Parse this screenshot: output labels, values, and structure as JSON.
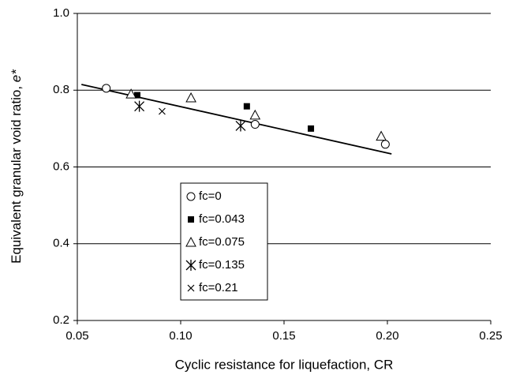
{
  "chart_data": {
    "type": "scatter",
    "xlabel": "Cyclic resistance for liquefaction, CR",
    "ylabel": "Equivalent granular void ratio,  ",
    "ylabel_symbol": "e*",
    "xlim": [
      0.05,
      0.25
    ],
    "xticks": [
      {
        "value": 0.05,
        "label": "0.05"
      },
      {
        "value": 0.1,
        "label": "0.10"
      },
      {
        "value": 0.15,
        "label": "0.15"
      },
      {
        "value": 0.2,
        "label": "0.20"
      },
      {
        "value": 0.25,
        "label": "0.25"
      }
    ],
    "ylim": [
      0.2,
      1.0
    ],
    "yticks": [
      0.2,
      0.4,
      0.6,
      0.8,
      {
        "value": 1.0,
        "label": "1.0"
      }
    ],
    "grid": true,
    "legend": "center",
    "series": [
      {
        "name": "fc=0",
        "marker": "circle",
        "color": "#000000",
        "x": [
          0.064,
          0.136,
          0.199
        ],
        "values": [
          0.805,
          0.711,
          0.659
        ]
      },
      {
        "name": "fc=0.043",
        "marker": "square",
        "color": "#000000",
        "x": [
          0.079,
          0.132,
          0.163
        ],
        "values": [
          0.787,
          0.758,
          0.7
        ]
      },
      {
        "name": "fc=0.075",
        "marker": "triangle",
        "color": "#000000",
        "x": [
          0.076,
          0.105,
          0.136,
          0.197
        ],
        "values": [
          0.79,
          0.78,
          0.735,
          0.68
        ]
      },
      {
        "name": "fc=0.135",
        "marker": "asterisk",
        "color": "#000000",
        "x": [
          0.08,
          0.129
        ],
        "values": [
          0.758,
          0.707
        ]
      },
      {
        "name": "fc=0.21",
        "marker": "x",
        "color": "#000000",
        "x": [
          0.091
        ],
        "values": [
          0.745
        ]
      }
    ],
    "trendline": {
      "color": "#000000",
      "x": [
        0.052,
        0.202
      ],
      "values": [
        0.815,
        0.634
      ]
    }
  }
}
